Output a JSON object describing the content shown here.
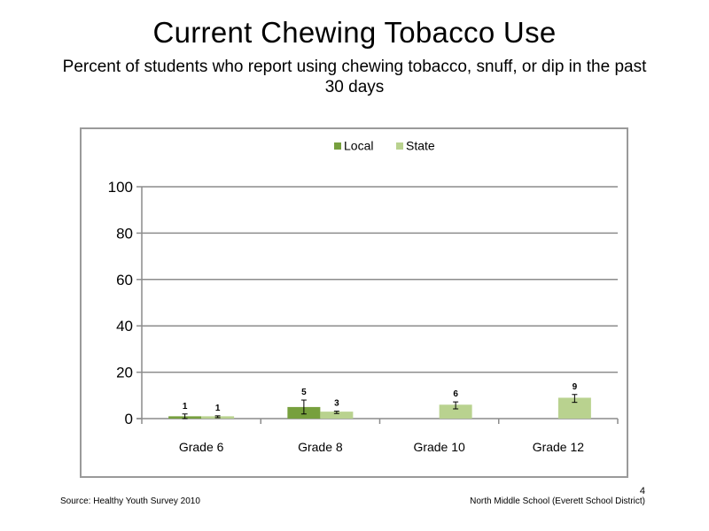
{
  "slide": {
    "title": "Current Chewing Tobacco Use",
    "subtitle": "Percent of students who report using chewing tobacco, snuff, or dip in the past 30 days",
    "source": "Source: Healthy Youth Survey 2010",
    "organization": "North Middle  School (Everett School District)",
    "page_number": "4"
  },
  "chart_data": {
    "type": "bar",
    "categories": [
      "Grade 6",
      "Grade 8",
      "Grade 10",
      "Grade 12"
    ],
    "ylim": [
      0,
      100
    ],
    "yticks": [
      0,
      20,
      40,
      60,
      80,
      100
    ],
    "grid": true,
    "legend_position": "top",
    "series": [
      {
        "name": "Local",
        "color": "#77a03e",
        "values": [
          1,
          5,
          null,
          null
        ],
        "labels": [
          "1",
          "5",
          "",
          ""
        ],
        "error": [
          [
            0,
            2
          ],
          [
            2,
            8
          ],
          null,
          null
        ]
      },
      {
        "name": "State",
        "color": "#b9d28f",
        "values": [
          1,
          3,
          6,
          9
        ],
        "labels": [
          "1",
          "3",
          "6",
          "9"
        ],
        "error": [
          [
            0.4,
            1.2
          ],
          [
            2.2,
            3.2
          ],
          [
            4.2,
            7.2
          ],
          [
            7,
            10.4
          ]
        ]
      }
    ]
  }
}
